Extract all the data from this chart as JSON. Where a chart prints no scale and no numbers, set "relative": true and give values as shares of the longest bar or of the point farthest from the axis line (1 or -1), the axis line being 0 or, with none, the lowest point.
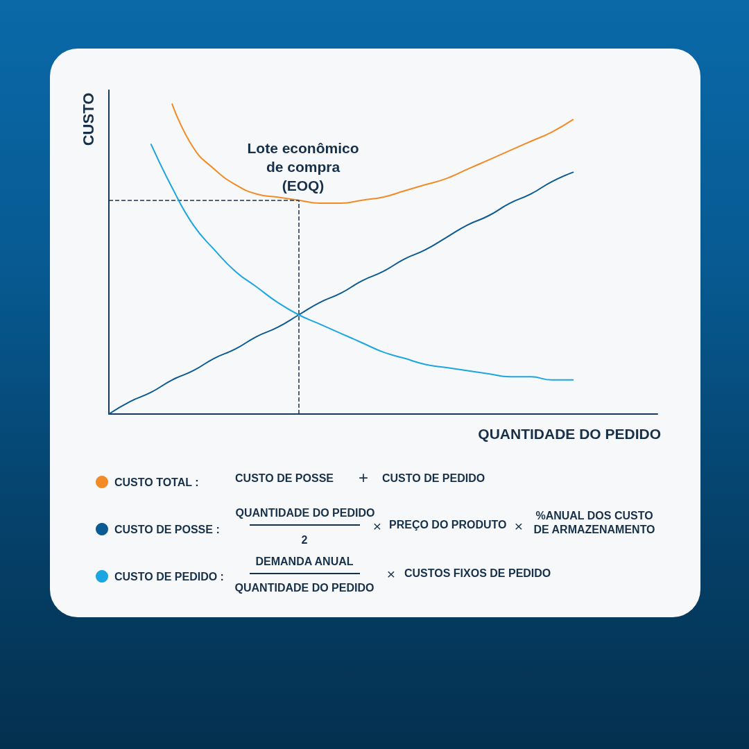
{
  "chart_data": {
    "type": "line",
    "relative": true,
    "xlabel": "QUANTIDADE DO PEDIDO",
    "ylabel": "CUSTO",
    "legend": "bottom left",
    "categories": [
      null,
      null,
      null,
      null,
      null,
      null,
      null,
      null,
      null,
      null,
      null,
      null,
      null,
      null,
      null,
      null,
      null,
      null,
      null,
      null,
      null,
      null,
      null,
      null,
      null,
      null,
      null
    ],
    "series": [
      {
        "name": "CUSTO TOTAL :",
        "color": "#f28a26",
        "values": [
          null,
          null,
          null,
          1,
          0.86,
          0.79,
          0.74,
          0.71,
          0.7,
          0.69,
          0.68,
          0.68,
          0.69,
          0.7,
          0.72,
          0.74,
          0.76,
          0.79,
          0.82,
          0.85,
          0.88,
          0.91,
          0.95,
          null,
          null,
          null,
          null
        ]
      },
      {
        "name": "CUSTO DE POSSE :",
        "color": "#0c5a92",
        "values": [
          0,
          0.04,
          0.07,
          0.11,
          0.14,
          0.18,
          0.21,
          0.25,
          0.28,
          0.32,
          0.36,
          0.39,
          0.43,
          0.46,
          0.5,
          0.53,
          0.57,
          0.61,
          0.64,
          0.68,
          0.71,
          0.75,
          0.78,
          null,
          null,
          null,
          null
        ]
      },
      {
        "name": "CUSTO DE PEDIDO :",
        "color": "#1ba5e1",
        "values": [
          null,
          null,
          0.87,
          0.73,
          0.61,
          0.53,
          0.46,
          0.41,
          0.36,
          0.32,
          0.29,
          0.26,
          0.23,
          0.2,
          0.18,
          0.16,
          0.15,
          0.14,
          0.13,
          0.12,
          0.12,
          0.11,
          0.11,
          null,
          null,
          null,
          null
        ]
      }
    ],
    "ref_lines": [
      {
        "axis": "y",
        "value": 0.69,
        "line_style": "dashed",
        "color": "#1b3048"
      }
    ],
    "annotations": [
      "Lote econômico\nde compra\n(EOQ)",
      "CUSTO DE POSSE",
      "+",
      "CUSTO DE PEDIDO",
      "QUANTIDADE DO PEDIDO",
      "2",
      "×",
      "PREÇO DO PRODUTO",
      "×",
      "%ANUAL DOS CUSTO\nDE ARMAZENAMENTO",
      "DEMANDA ANUAL",
      "QUANTIDADE DO PEDIDO",
      "×",
      "CUSTOS FIXOS DE PEDIDO"
    ]
  }
}
